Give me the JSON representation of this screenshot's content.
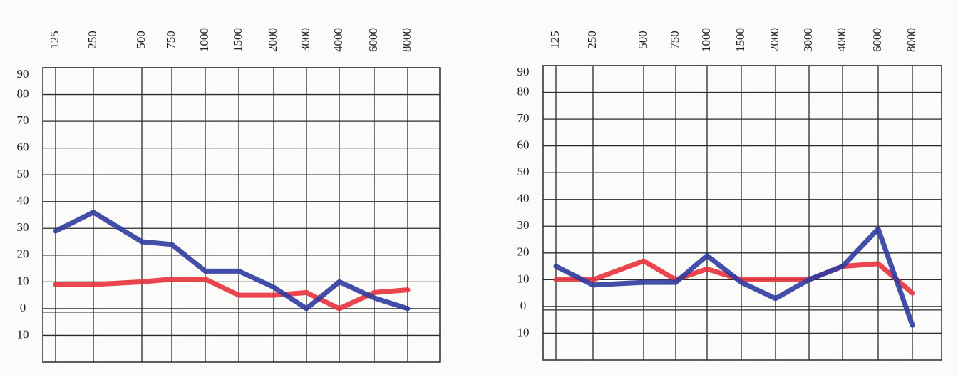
{
  "chart_data": [
    {
      "type": "line",
      "categories": [
        "125",
        "250",
        "500",
        "750",
        "1000",
        "1500",
        "2000",
        "3000",
        "4000",
        "6000",
        "8000"
      ],
      "series": [
        {
          "color": "#e8323c",
          "values": [
            9,
            9,
            10,
            11,
            11,
            5,
            5,
            6,
            0,
            6,
            7
          ]
        },
        {
          "color": "#2f3ba0",
          "values": [
            29,
            36,
            25,
            24,
            14,
            14,
            8,
            0,
            10,
            4,
            0
          ]
        }
      ],
      "ylim": [
        -20,
        90
      ],
      "yticks": [
        {
          "value": -10,
          "label": "10"
        },
        0,
        10,
        20,
        30,
        40,
        50,
        60,
        70,
        80,
        90
      ],
      "grid": true
    },
    {
      "type": "line",
      "categories": [
        "125",
        "250",
        "500",
        "750",
        "1000",
        "1500",
        "2000",
        "3000",
        "4000",
        "6000",
        "8000"
      ],
      "series": [
        {
          "color": "#e8323c",
          "values": [
            10,
            10,
            17,
            10,
            14,
            10,
            10,
            10,
            15,
            16,
            5
          ]
        },
        {
          "color": "#2f3ba0",
          "values": [
            15,
            8,
            9,
            9,
            19,
            9,
            3,
            10,
            15,
            29,
            -7
          ]
        }
      ],
      "ylim": [
        -20,
        90
      ],
      "yticks": [
        {
          "value": -10,
          "label": "10"
        },
        0,
        10,
        20,
        30,
        40,
        50,
        60,
        70,
        80,
        90
      ],
      "grid": true
    }
  ]
}
